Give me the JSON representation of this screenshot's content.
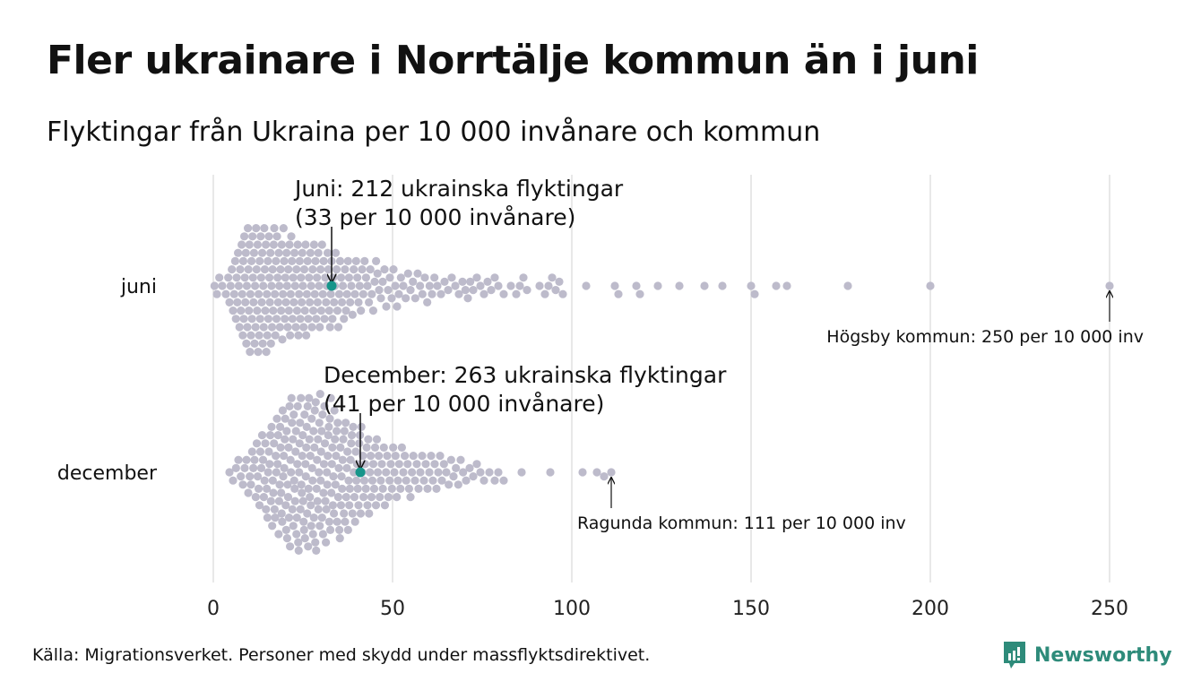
{
  "title": "Fler ukrainare i Norrtälje kommun än i juni",
  "subtitle": "Flyktingar från Ukraina per 10 000 invånare och kommun",
  "source": "Källa: Migrationsverket. Personer med skydd under massflyktsdirektivet.",
  "logo_text": "Newsworthy",
  "colors": {
    "dot": "#bdbbcb",
    "highlight": "#17958a",
    "grid": "#d0d0d0",
    "logo": "#2e8b7a"
  },
  "chart_data": {
    "type": "scatter",
    "subtype": "beeswarm",
    "xlim": [
      0,
      260
    ],
    "x_ticks": [
      0,
      50,
      100,
      150,
      200,
      250
    ],
    "grid": true,
    "bin_width": 2,
    "series": [
      {
        "name": "juni",
        "label": "juni",
        "bins": [
          [
            0,
            3
          ],
          [
            2,
            2
          ],
          [
            4,
            6
          ],
          [
            6,
            10
          ],
          [
            8,
            14
          ],
          [
            10,
            14
          ],
          [
            12,
            14
          ],
          [
            14,
            14
          ],
          [
            16,
            13
          ],
          [
            18,
            12
          ],
          [
            20,
            12
          ],
          [
            22,
            11
          ],
          [
            24,
            11
          ],
          [
            26,
            10
          ],
          [
            28,
            10
          ],
          [
            30,
            9
          ],
          [
            32,
            9
          ],
          [
            34,
            8
          ],
          [
            36,
            7
          ],
          [
            38,
            6
          ],
          [
            40,
            6
          ],
          [
            42,
            5
          ],
          [
            44,
            5
          ],
          [
            46,
            4
          ],
          [
            48,
            4
          ],
          [
            50,
            4
          ],
          [
            52,
            3
          ],
          [
            54,
            3
          ],
          [
            56,
            3
          ],
          [
            58,
            3
          ],
          [
            60,
            3
          ],
          [
            62,
            2
          ],
          [
            64,
            2
          ],
          [
            66,
            2
          ],
          [
            68,
            2
          ],
          [
            70,
            3
          ],
          [
            72,
            2
          ],
          [
            74,
            2
          ],
          [
            76,
            2
          ],
          [
            78,
            2
          ],
          [
            80,
            1
          ],
          [
            82,
            1
          ],
          [
            84,
            2
          ],
          [
            86,
            2
          ],
          [
            90,
            1
          ],
          [
            92,
            2
          ],
          [
            94,
            2
          ],
          [
            96,
            2
          ]
        ],
        "extra_values": [
          104,
          112,
          113,
          118,
          119,
          124,
          130,
          137,
          142,
          150,
          151,
          157,
          160,
          177,
          200,
          250
        ],
        "highlight": {
          "value": 33,
          "label_line1": "Juni: 212 ukrainska flyktingar",
          "label_line2": "(33 per 10 000 invånare)"
        },
        "max_annotation": {
          "value": 250,
          "label": "Högsby kommun: 250 per 10 000 inv"
        }
      },
      {
        "name": "december",
        "label": "december",
        "bins": [
          [
            4,
            2
          ],
          [
            6,
            3
          ],
          [
            8,
            4
          ],
          [
            10,
            6
          ],
          [
            12,
            8
          ],
          [
            14,
            10
          ],
          [
            16,
            12
          ],
          [
            18,
            14
          ],
          [
            20,
            15
          ],
          [
            22,
            16
          ],
          [
            24,
            16
          ],
          [
            26,
            16
          ],
          [
            28,
            16
          ],
          [
            30,
            15
          ],
          [
            32,
            14
          ],
          [
            34,
            13
          ],
          [
            36,
            12
          ],
          [
            38,
            11
          ],
          [
            40,
            10
          ],
          [
            42,
            9
          ],
          [
            44,
            8
          ],
          [
            46,
            7
          ],
          [
            48,
            6
          ],
          [
            50,
            6
          ],
          [
            52,
            5
          ],
          [
            54,
            5
          ],
          [
            56,
            4
          ],
          [
            58,
            4
          ],
          [
            60,
            4
          ],
          [
            62,
            4
          ],
          [
            64,
            3
          ],
          [
            66,
            3
          ],
          [
            68,
            3
          ],
          [
            70,
            2
          ],
          [
            72,
            2
          ],
          [
            74,
            2
          ],
          [
            76,
            1
          ],
          [
            78,
            2
          ],
          [
            80,
            1
          ]
        ],
        "extra_values": [
          86,
          94,
          103,
          107,
          109,
          111
        ],
        "highlight": {
          "value": 41,
          "label_line1": "December: 263 ukrainska flyktingar",
          "label_line2": "(41 per 10 000 invånare)"
        },
        "max_annotation": {
          "value": 111,
          "label": "Ragunda kommun: 111 per 10 000 inv"
        }
      }
    ]
  }
}
